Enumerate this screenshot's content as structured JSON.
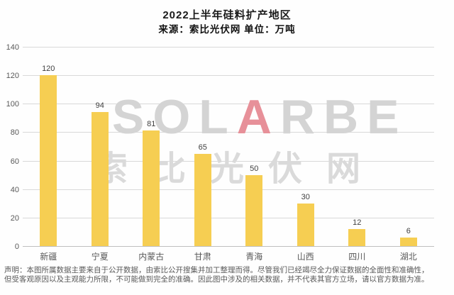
{
  "header": {
    "title": "2022上半年硅料扩产地区",
    "subtitle": "来源：索比光伏网 单位：万吨"
  },
  "chart_data": {
    "type": "bar",
    "title": "2022上半年硅料扩产地区",
    "source": "索比光伏网",
    "unit": "万吨",
    "categories": [
      "新疆",
      "宁夏",
      "内蒙古",
      "甘肃",
      "青海",
      "山西",
      "四川",
      "湖北"
    ],
    "values": [
      120,
      94,
      81,
      65,
      50,
      30,
      12,
      6
    ],
    "ylim": [
      0,
      140
    ],
    "yticks": [
      0,
      20,
      40,
      60,
      80,
      100,
      120,
      140
    ],
    "grid": true,
    "legend": "none",
    "bar_color": "#f6ce52",
    "gridline_color": "#d9d9d9",
    "tick_label_color": "#595959",
    "value_label_color": "#404040"
  },
  "watermark": {
    "logo_pre": "SOL",
    "logo_accent": "A",
    "logo_post": "RBE",
    "chinese": "索比光伏网",
    "accent_color": "#e79099"
  },
  "footer": {
    "disclaimer_line1": "声明：本图所属数据主要来自于公开数据，由索比公开搜集并加工整理而得。尽管我们已经竭尽全力保证数据的全面性和准确性，",
    "disclaimer_line2": "但受客观原因以及主观能力所限，不可能做到完全的准确。因此图中涉及的相关数据，并不代表其官方立场，请以官方数据为准。"
  }
}
